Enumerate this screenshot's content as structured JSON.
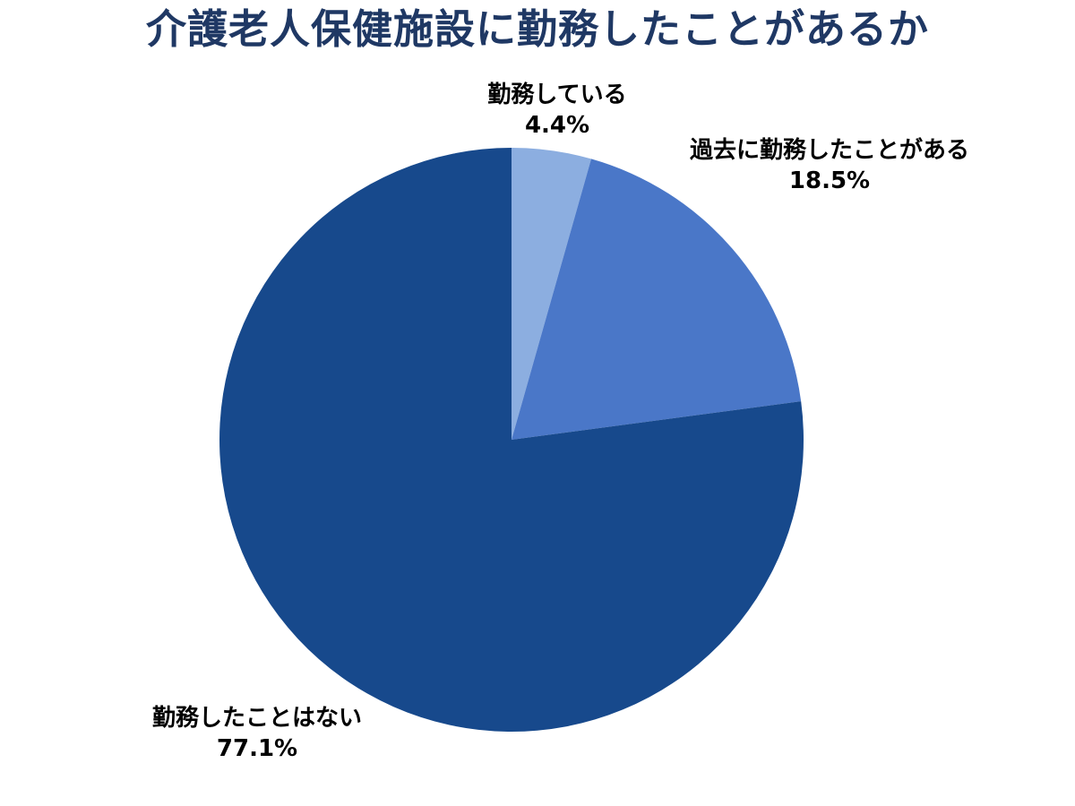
{
  "chart_data": {
    "type": "pie",
    "title": "介護老人保健施設に勤務したことがあるか",
    "title_color": "#1F3864",
    "label_text_color": "#000000",
    "background_color": "#ffffff",
    "start_angle_deg": 0,
    "direction": "clockwise",
    "legend_position": "none",
    "labels_position": "outside",
    "total": 100,
    "slices": [
      {
        "label": "勤務している",
        "value": 4.4,
        "value_label": "4.4%",
        "color": "#8CAEE0"
      },
      {
        "label": "過去に勤務したことがある",
        "value": 18.5,
        "value_label": "18.5%",
        "color": "#4A77C8"
      },
      {
        "label": "勤務したことはない",
        "value": 77.1,
        "value_label": "77.1%",
        "color": "#17498C"
      }
    ]
  }
}
